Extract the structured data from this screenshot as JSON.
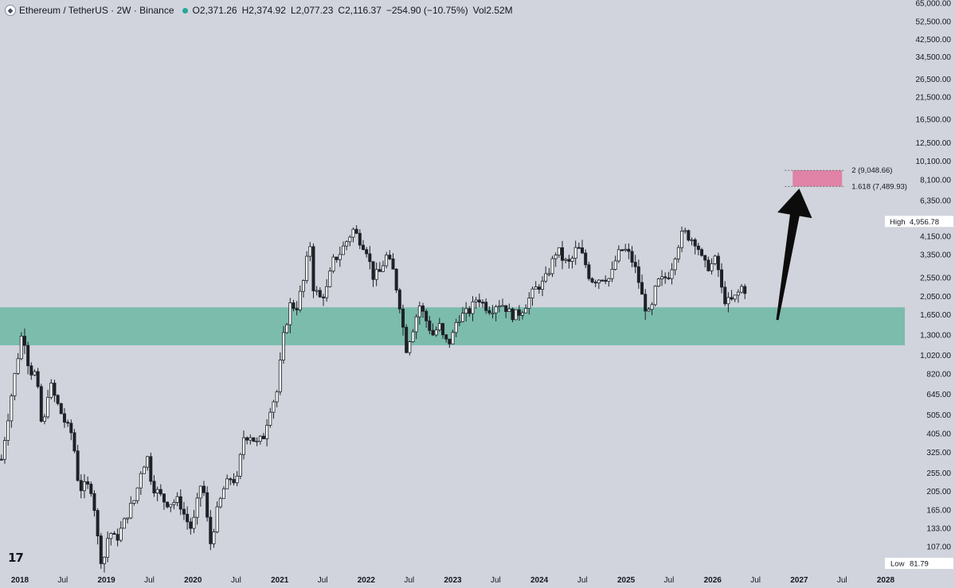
{
  "header": {
    "symbol": "Ethereum / TetherUS · 2W · Binance",
    "o_label": "O",
    "o_value": "2,371.26",
    "h_label": "H",
    "h_value": "2,374.92",
    "l_label": "L",
    "l_value": "2,077.23",
    "c_label": "C",
    "c_value": "2,116.37",
    "change": "−254.90 (−10.75%)",
    "vol_label": "Vol",
    "vol_value": "2.52M"
  },
  "logo_text": "17",
  "colors": {
    "background": "#d1d4dc",
    "support_zone": "#7cbcad",
    "target_zone": "#e083a6",
    "candle": "#1e2128",
    "arrow": "#0c0c0c"
  },
  "chart_data": {
    "type": "candlestick",
    "symbol": "ETHUSDT",
    "interval": "2W",
    "y_scale": "log",
    "ylim": [
      75,
      66000
    ],
    "x_range": [
      "2017-10",
      "2028-03"
    ],
    "y_ticks": [
      "65,000.00",
      "52,500.00",
      "42,500.00",
      "34,500.00",
      "26,500.00",
      "21,500.00",
      "16,500.00",
      "12,500.00",
      "10,100.00",
      "8,100.00",
      "6,350.00",
      "4,150.00",
      "3,350.00",
      "2,550.00",
      "2,050.00",
      "1,650.00",
      "1,300.00",
      "1,020.00",
      "820.00",
      "645.00",
      "505.00",
      "405.00",
      "325.00",
      "255.00",
      "205.00",
      "165.00",
      "133.00",
      "107.00"
    ],
    "x_ticks": [
      {
        "label": "2018",
        "date": "2018-01",
        "bold": true
      },
      {
        "label": "Jul",
        "date": "2018-07",
        "bold": false
      },
      {
        "label": "2019",
        "date": "2019-01",
        "bold": true
      },
      {
        "label": "Jul",
        "date": "2019-07",
        "bold": false
      },
      {
        "label": "2020",
        "date": "2020-01",
        "bold": true
      },
      {
        "label": "Jul",
        "date": "2020-07",
        "bold": false
      },
      {
        "label": "2021",
        "date": "2021-01",
        "bold": true
      },
      {
        "label": "Jul",
        "date": "2021-07",
        "bold": false
      },
      {
        "label": "2022",
        "date": "2022-01",
        "bold": true
      },
      {
        "label": "Jul",
        "date": "2022-07",
        "bold": false
      },
      {
        "label": "2023",
        "date": "2023-01",
        "bold": true
      },
      {
        "label": "Jul",
        "date": "2023-07",
        "bold": false
      },
      {
        "label": "2024",
        "date": "2024-01",
        "bold": true
      },
      {
        "label": "Jul",
        "date": "2024-07",
        "bold": false
      },
      {
        "label": "2025",
        "date": "2025-01",
        "bold": true
      },
      {
        "label": "Jul",
        "date": "2025-07",
        "bold": false
      },
      {
        "label": "2026",
        "date": "2026-01",
        "bold": true
      },
      {
        "label": "Jul",
        "date": "2026-07",
        "bold": false
      },
      {
        "label": "2027",
        "date": "2027-01",
        "bold": true
      },
      {
        "label": "Jul",
        "date": "2027-07",
        "bold": false
      },
      {
        "label": "2028",
        "date": "2028-01",
        "bold": true
      }
    ],
    "high_marker": {
      "label": "High",
      "value": "4,956.78"
    },
    "low_marker": {
      "label": "Low",
      "value": "81.79"
    },
    "support_zone": {
      "low": 1150,
      "high": 1800,
      "from": "2017-10",
      "to": "2028-01"
    },
    "fib_target": {
      "from": "2026-11",
      "to": "2027-07",
      "levels": [
        {
          "ratio": "2",
          "price": 9048.66,
          "text": "2 (9,048.66)"
        },
        {
          "ratio": "1.618",
          "price": 7489.93,
          "text": "1.618 (7,489.93)"
        }
      ]
    },
    "arrow": {
      "from_date": "2026-10",
      "from_price": 1550,
      "to_date": "2027-01",
      "to_price": 7300
    },
    "anchors": [
      [
        "2017-10-15",
        300
      ],
      [
        "2017-12-01",
        700
      ],
      [
        "2018-01-13",
        1400
      ],
      [
        "2018-02-10",
        850
      ],
      [
        "2018-03-10",
        820
      ],
      [
        "2018-04-07",
        400
      ],
      [
        "2018-05-05",
        750
      ],
      [
        "2018-06-02",
        600
      ],
      [
        "2018-07-14",
        450
      ],
      [
        "2018-08-11",
        400
      ],
      [
        "2018-09-08",
        210
      ],
      [
        "2018-10-06",
        220
      ],
      [
        "2018-11-03",
        210
      ],
      [
        "2018-11-24",
        120
      ],
      [
        "2018-12-15",
        84
      ],
      [
        "2019-01-12",
        130
      ],
      [
        "2019-02-09",
        115
      ],
      [
        "2019-03-09",
        135
      ],
      [
        "2019-04-06",
        165
      ],
      [
        "2019-05-04",
        190
      ],
      [
        "2019-05-25",
        260
      ],
      [
        "2019-06-22",
        310
      ],
      [
        "2019-07-13",
        220
      ],
      [
        "2019-08-10",
        200
      ],
      [
        "2019-09-07",
        180
      ],
      [
        "2019-10-05",
        180
      ],
      [
        "2019-11-02",
        185
      ],
      [
        "2019-11-30",
        150
      ],
      [
        "2019-12-28",
        130
      ],
      [
        "2020-02-08",
        240
      ],
      [
        "2020-03-14",
        110
      ],
      [
        "2020-04-11",
        160
      ],
      [
        "2020-05-09",
        210
      ],
      [
        "2020-06-06",
        240
      ],
      [
        "2020-07-04",
        230
      ],
      [
        "2020-08-01",
        390
      ],
      [
        "2020-08-29",
        400
      ],
      [
        "2020-09-26",
        360
      ],
      [
        "2020-10-24",
        390
      ],
      [
        "2020-11-21",
        550
      ],
      [
        "2020-12-19",
        650
      ],
      [
        "2021-01-16",
        1250
      ],
      [
        "2021-02-13",
        1850
      ],
      [
        "2021-03-13",
        1800
      ],
      [
        "2021-04-10",
        2400
      ],
      [
        "2021-05-08",
        3900
      ],
      [
        "2021-05-22",
        2300
      ],
      [
        "2021-06-19",
        2000
      ],
      [
        "2021-07-17",
        2200
      ],
      [
        "2021-08-14",
        3100
      ],
      [
        "2021-09-11",
        3400
      ],
      [
        "2021-10-09",
        3900
      ],
      [
        "2021-11-06",
        4500
      ],
      [
        "2021-12-04",
        4000
      ],
      [
        "2022-01-01",
        3600
      ],
      [
        "2022-01-29",
        2600
      ],
      [
        "2022-02-26",
        2700
      ],
      [
        "2022-03-26",
        3300
      ],
      [
        "2022-04-23",
        2800
      ],
      [
        "2022-05-21",
        1900
      ],
      [
        "2022-06-18",
        1100
      ],
      [
        "2022-07-16",
        1400
      ],
      [
        "2022-08-13",
        1850
      ],
      [
        "2022-09-10",
        1550
      ],
      [
        "2022-10-08",
        1300
      ],
      [
        "2022-11-05",
        1450
      ],
      [
        "2022-11-26",
        1200
      ],
      [
        "2022-12-24",
        1200
      ],
      [
        "2023-01-21",
        1600
      ],
      [
        "2023-02-18",
        1650
      ],
      [
        "2023-03-18",
        1750
      ],
      [
        "2023-04-15",
        2050
      ],
      [
        "2023-05-13",
        1850
      ],
      [
        "2023-06-10",
        1750
      ],
      [
        "2023-07-08",
        1900
      ],
      [
        "2023-08-05",
        1850
      ],
      [
        "2023-09-02",
        1650
      ],
      [
        "2023-09-30",
        1650
      ],
      [
        "2023-10-28",
        1800
      ],
      [
        "2023-11-25",
        2050
      ],
      [
        "2023-12-23",
        2300
      ],
      [
        "2024-01-20",
        2400
      ],
      [
        "2024-02-17",
        2900
      ],
      [
        "2024-03-16",
        3600
      ],
      [
        "2024-04-13",
        3100
      ],
      [
        "2024-05-11",
        3000
      ],
      [
        "2024-06-08",
        3700
      ],
      [
        "2024-07-06",
        3200
      ],
      [
        "2024-08-03",
        2500
      ],
      [
        "2024-08-31",
        2500
      ],
      [
        "2024-09-28",
        2600
      ],
      [
        "2024-10-26",
        2500
      ],
      [
        "2024-11-23",
        3300
      ],
      [
        "2024-12-21",
        3600
      ],
      [
        "2025-01-18",
        3300
      ],
      [
        "2025-02-15",
        2700
      ],
      [
        "2025-03-15",
        1900
      ],
      [
        "2025-04-12",
        1600
      ],
      [
        "2025-05-10",
        2400
      ],
      [
        "2025-06-07",
        2500
      ],
      [
        "2025-07-05",
        2700
      ],
      [
        "2025-08-02",
        3600
      ],
      [
        "2025-08-30",
        4400
      ],
      [
        "2025-09-27",
        4100
      ],
      [
        "2025-10-25",
        3900
      ],
      [
        "2025-11-22",
        3000
      ],
      [
        "2025-12-20",
        2900
      ],
      [
        "2026-01-17",
        3200
      ],
      [
        "2026-02-14",
        2000
      ],
      [
        "2026-03-14",
        1900
      ],
      [
        "2026-04-11",
        2050
      ],
      [
        "2026-05-09",
        2350
      ],
      [
        "2026-05-23",
        2116
      ]
    ]
  }
}
